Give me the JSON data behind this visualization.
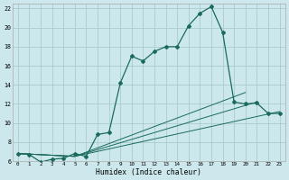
{
  "xlabel": "Humidex (Indice chaleur)",
  "bg_color": "#cce8ec",
  "grid_color": "#aacccc",
  "line_color": "#1a6b5a",
  "xlim": [
    -0.5,
    23.5
  ],
  "ylim": [
    6,
    22.5
  ],
  "xticks": [
    0,
    1,
    2,
    3,
    4,
    5,
    6,
    7,
    8,
    9,
    10,
    11,
    12,
    13,
    14,
    15,
    16,
    17,
    18,
    19,
    20,
    21,
    22,
    23
  ],
  "yticks": [
    6,
    8,
    10,
    12,
    14,
    16,
    18,
    20,
    22
  ],
  "series1_x": [
    0,
    1,
    2,
    3,
    4,
    5,
    6,
    7,
    8,
    9,
    10,
    11,
    12,
    13,
    14,
    15,
    16,
    17,
    18,
    19,
    20,
    21,
    22,
    23
  ],
  "series1_y": [
    6.8,
    6.7,
    5.9,
    6.2,
    6.3,
    6.8,
    6.5,
    8.8,
    9.0,
    14.2,
    17.0,
    16.5,
    17.5,
    18.0,
    18.0,
    20.2,
    21.5,
    22.2,
    19.5,
    12.2,
    12.0,
    12.1,
    11.0,
    11.0
  ],
  "series2_x": [
    0,
    5,
    23
  ],
  "series2_y": [
    6.8,
    6.5,
    11.2
  ],
  "series3_x": [
    0,
    5,
    21
  ],
  "series3_y": [
    6.8,
    6.5,
    12.2
  ],
  "series4_x": [
    0,
    5,
    20
  ],
  "series4_y": [
    6.8,
    6.5,
    13.2
  ]
}
